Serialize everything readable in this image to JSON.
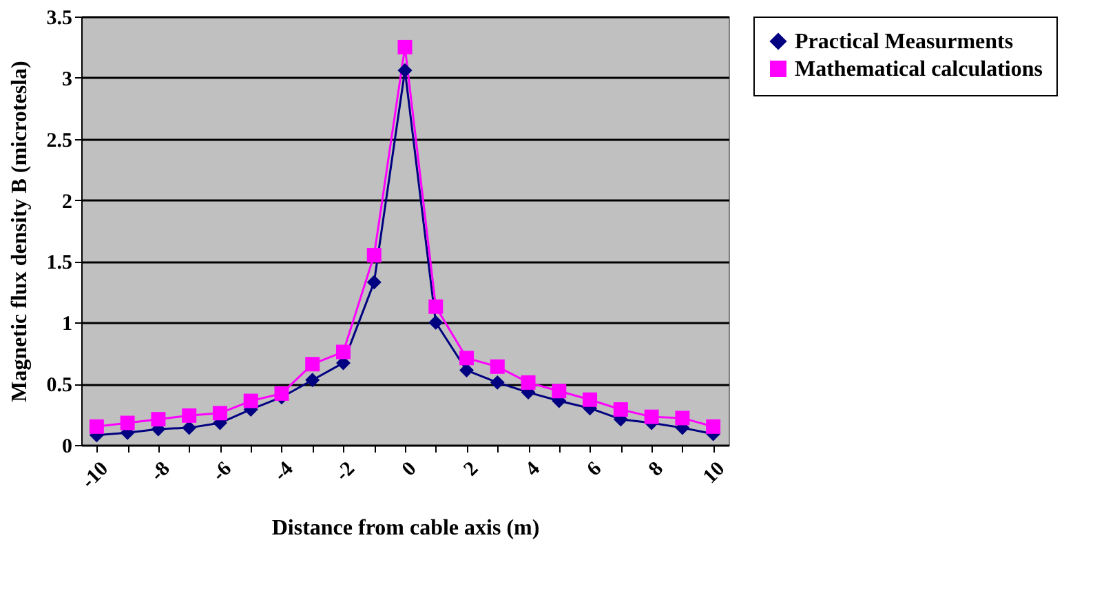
{
  "chart_data": {
    "type": "line",
    "xlabel": "Distance from cable axis (m)",
    "ylabel": "Magnetic flux density B (microtesla)",
    "categories": [
      "-10",
      null,
      "-8",
      null,
      "-6",
      null,
      "-4",
      null,
      "-2",
      null,
      "0",
      null,
      "2",
      null,
      "4",
      null,
      "6",
      null,
      "8",
      null,
      "10"
    ],
    "series": [
      {
        "name": "Practical Measurments",
        "color": "#000080",
        "marker": "diamond",
        "values": [
          0.08,
          0.1,
          0.13,
          0.14,
          0.18,
          0.29,
          0.39,
          0.53,
          0.67,
          1.33,
          3.06,
          1.0,
          0.61,
          0.51,
          0.43,
          0.36,
          0.3,
          0.21,
          0.18,
          0.14,
          0.09
        ]
      },
      {
        "name": " Mathematical calculations",
        "color": "#ff00ff",
        "marker": "square",
        "values": [
          0.15,
          0.18,
          0.21,
          0.24,
          0.26,
          0.36,
          0.42,
          0.66,
          0.76,
          1.55,
          3.25,
          1.13,
          0.71,
          0.64,
          0.51,
          0.44,
          0.37,
          0.29,
          0.23,
          0.22,
          0.15
        ]
      }
    ],
    "ylim": [
      0,
      3.5
    ],
    "yticks": [
      0,
      0.5,
      1,
      1.5,
      2,
      2.5,
      3,
      3.5
    ],
    "grid": "y",
    "legend": "right",
    "line_style": "solid"
  }
}
